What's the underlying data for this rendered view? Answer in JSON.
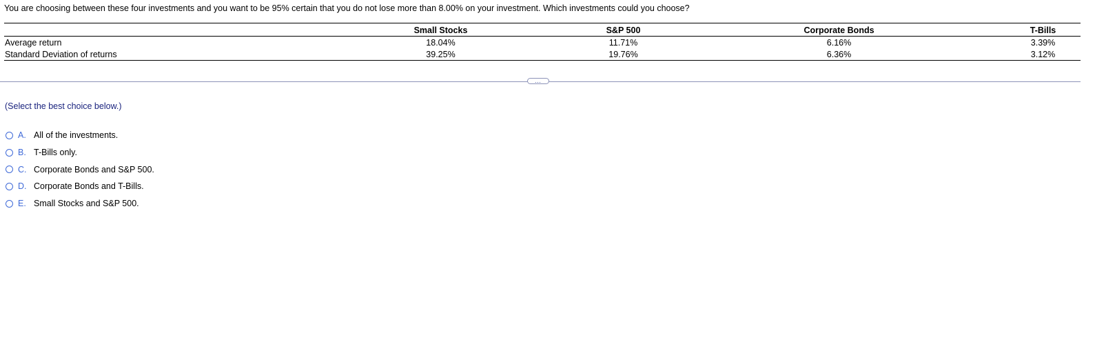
{
  "question": "You are choosing between these four investments and you want to be 95% certain that you do not lose more than 8.00% on your investment. Which investments could you choose?",
  "table": {
    "headers": [
      "",
      "Small Stocks",
      "S&P 500",
      "Corporate Bonds",
      "T-Bills"
    ],
    "rows": [
      {
        "label": "Average return",
        "values": [
          "18.04%",
          "11.71%",
          "6.16%",
          "3.39%"
        ]
      },
      {
        "label": "Standard Deviation of returns",
        "values": [
          "39.25%",
          "19.76%",
          "6.36%",
          "3.12%"
        ]
      }
    ]
  },
  "more_button": "…",
  "instruction": "(Select the best choice below.)",
  "options": [
    {
      "letter": "A.",
      "text": "All of the investments."
    },
    {
      "letter": "B.",
      "text": "T-Bills only."
    },
    {
      "letter": "C.",
      "text": "Corporate Bonds and S&P 500."
    },
    {
      "letter": "D.",
      "text": "Corporate Bonds and T-Bills."
    },
    {
      "letter": "E.",
      "text": "Small Stocks and S&P 500."
    }
  ],
  "colors": {
    "accent": "#3f6ad8",
    "instruction": "#1a237e",
    "divider": "#8c92b8"
  }
}
